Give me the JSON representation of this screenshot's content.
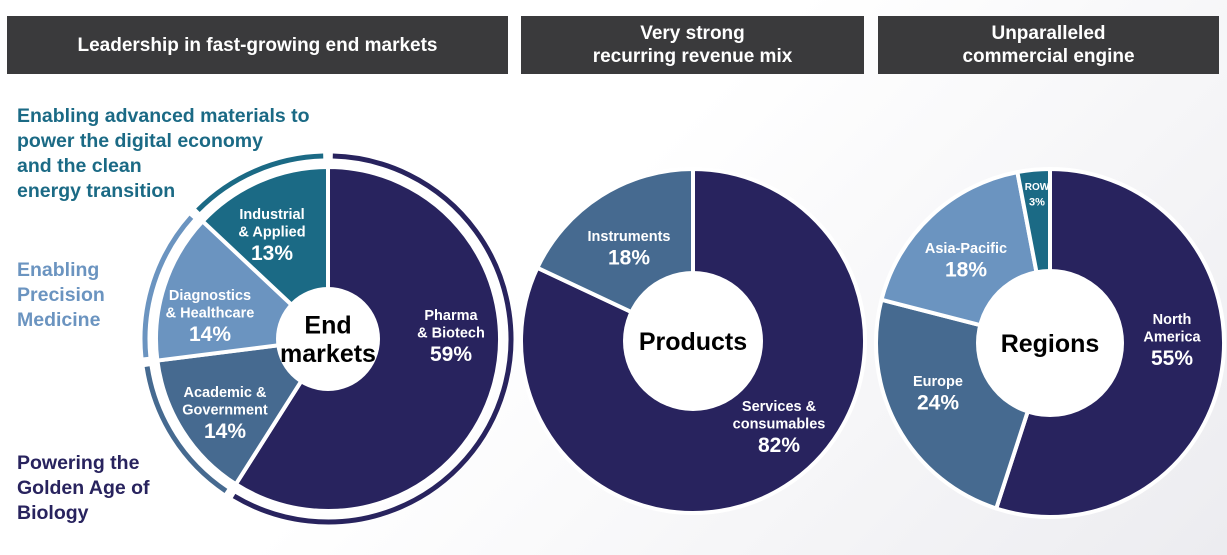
{
  "headers": {
    "h1": "Leadership in fast-growing end markets",
    "h2_line1": "Very strong",
    "h2_line2": "recurring revenue mix",
    "h3_line1": "Unparalleled",
    "h3_line2": "commercial engine"
  },
  "captions": {
    "advanced": [
      "Enabling advanced materials to",
      "power the digital economy",
      "and the clean",
      "energy transition"
    ],
    "precision": [
      "Enabling",
      "Precision",
      "Medicine"
    ],
    "biology": [
      "Powering the",
      "Golden Age of",
      "Biology"
    ]
  },
  "colors": {
    "navy": "#28235e",
    "teal": "#1b6a85",
    "mid_blue": "#466a90",
    "light_blue": "#6b94c0",
    "header_bg": "#3a3a3c",
    "caption_teal": "#1b6a85",
    "caption_light": "#6b94c0",
    "caption_navy": "#28235e"
  },
  "chart_data": [
    {
      "type": "pie",
      "title": "End markets",
      "center_label": [
        "End",
        "markets"
      ],
      "slices": [
        {
          "label": [
            "Pharma",
            "& Biotech"
          ],
          "value": 59,
          "display": "59%",
          "color": "#28235e"
        },
        {
          "label": [
            "Academic &",
            "Government"
          ],
          "value": 14,
          "display": "14%",
          "color": "#466a90"
        },
        {
          "label": [
            "Diagnostics",
            "& Healthcare"
          ],
          "value": 14,
          "display": "14%",
          "color": "#6b94c0"
        },
        {
          "label": [
            "Industrial",
            "& Applied"
          ],
          "value": 13,
          "display": "13%",
          "color": "#1b6a85"
        }
      ]
    },
    {
      "type": "pie",
      "title": "Products",
      "center_label": [
        "Products"
      ],
      "slices": [
        {
          "label": [
            "Services &",
            "consumables"
          ],
          "value": 82,
          "display": "82%",
          "color": "#28235e"
        },
        {
          "label": [
            "Instruments"
          ],
          "value": 18,
          "display": "18%",
          "color": "#466a90"
        }
      ]
    },
    {
      "type": "pie",
      "title": "Regions",
      "center_label": [
        "Regions"
      ],
      "slices": [
        {
          "label": [
            "North",
            "America"
          ],
          "value": 55,
          "display": "55%",
          "color": "#28235e"
        },
        {
          "label": [
            "Europe"
          ],
          "value": 24,
          "display": "24%",
          "color": "#466a90"
        },
        {
          "label": [
            "Asia-Pacific"
          ],
          "value": 18,
          "display": "18%",
          "color": "#6b94c0"
        },
        {
          "label": [
            "ROW"
          ],
          "value": 3,
          "display": "3%",
          "color": "#1b6a85"
        }
      ]
    }
  ]
}
